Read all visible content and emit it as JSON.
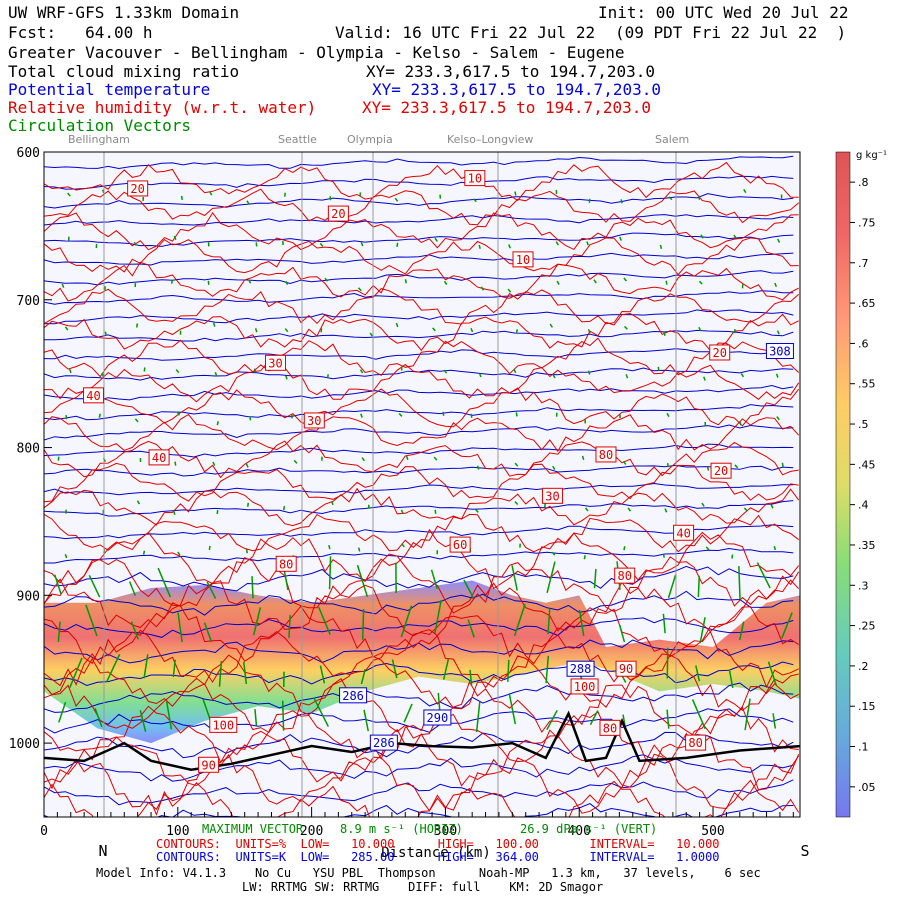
{
  "header": {
    "line1_left": "UW WRF-GFS 1.33km Domain",
    "line1_right": "Init: 00 UTC Wed 20 Jul 22",
    "line2_left": "Fcst:   64.00 h",
    "line2_mid": "Valid: 16 UTC Fri 22 Jul 22",
    "line2_right": "(09 PDT Fri 22 Jul 22  )",
    "line3": "Greater Vacouver - Bellingham - Olympia - Kelso - Salem - Eugene",
    "field1": "Total cloud mixing ratio",
    "field1_xy": "XY= 233.3,617.5 to 194.7,203.0",
    "field2": "Potential temperature",
    "field2_xy": "XY= 233.3,617.5 to 194.7,203.0",
    "field3": "Relative humidity (w.r.t. water)",
    "field3_xy": "XY= 233.3,617.5 to 194.7,203.0",
    "field4": "Circulation Vectors"
  },
  "cities": [
    "Bellingham",
    "Seattle",
    "Olympia",
    "Kelso–Longview",
    "Salem"
  ],
  "colors": {
    "rh": "#dd0000",
    "theta": "#0000cc",
    "vectors": "#009900",
    "terrain": "#000000"
  },
  "chart_data": {
    "type": "heatmap",
    "x_ticks": [
      "0",
      "100",
      "200",
      "300",
      "400",
      "500"
    ],
    "y_ticks": [
      "600",
      "700",
      "800",
      "900",
      "1000"
    ],
    "xlim": [
      0,
      565
    ],
    "ylim": [
      1050,
      600
    ],
    "x_end_labels": {
      "left": "N",
      "right": "S"
    },
    "xlabel": "Distance (km)",
    "colorbar": {
      "unit": "g kg⁻¹",
      "ticks": [
        ".05",
        ".1",
        ".15",
        ".2",
        ".25",
        ".3",
        ".35",
        ".4",
        ".45",
        ".5",
        ".55",
        ".6",
        ".65",
        ".7",
        ".75",
        ".8"
      ]
    },
    "rh_labels": [
      {
        "t": "20",
        "x": 70,
        "p": 625
      },
      {
        "t": "20",
        "x": 220,
        "p": 642
      },
      {
        "t": "10",
        "x": 322,
        "p": 618
      },
      {
        "t": "10",
        "x": 358,
        "p": 673
      },
      {
        "t": "30",
        "x": 173,
        "p": 743
      },
      {
        "t": "40",
        "x": 37,
        "p": 765
      },
      {
        "t": "30",
        "x": 202,
        "p": 782
      },
      {
        "t": "40",
        "x": 86,
        "p": 807
      },
      {
        "t": "20",
        "x": 505,
        "p": 736
      },
      {
        "t": "80",
        "x": 420,
        "p": 805
      },
      {
        "t": "20",
        "x": 506,
        "p": 816
      },
      {
        "t": "30",
        "x": 380,
        "p": 833
      },
      {
        "t": "40",
        "x": 478,
        "p": 858
      },
      {
        "t": "60",
        "x": 311,
        "p": 866
      },
      {
        "t": "80",
        "x": 181,
        "p": 879
      },
      {
        "t": "80",
        "x": 434,
        "p": 887
      },
      {
        "t": "90",
        "x": 435,
        "p": 950
      },
      {
        "t": "100",
        "x": 134,
        "p": 988
      },
      {
        "t": "90",
        "x": 123,
        "p": 1015
      },
      {
        "t": "80",
        "x": 423,
        "p": 990
      },
      {
        "t": "80",
        "x": 487,
        "p": 1000
      },
      {
        "t": "100",
        "x": 404,
        "p": 962
      }
    ],
    "theta_labels": [
      {
        "t": "308",
        "x": 550,
        "p": 735
      },
      {
        "t": "286",
        "x": 231,
        "p": 968
      },
      {
        "t": "288",
        "x": 401,
        "p": 950
      },
      {
        "t": "290",
        "x": 294,
        "p": 983
      },
      {
        "t": "286",
        "x": 254,
        "p": 1000
      }
    ],
    "cloud_band": [
      {
        "x": 0,
        "top": 905,
        "bot": 965
      },
      {
        "x": 40,
        "top": 905,
        "bot": 990
      },
      {
        "x": 80,
        "top": 895,
        "bot": 1000
      },
      {
        "x": 120,
        "top": 893,
        "bot": 985
      },
      {
        "x": 160,
        "top": 900,
        "bot": 975
      },
      {
        "x": 200,
        "top": 905,
        "bot": 980
      },
      {
        "x": 240,
        "top": 900,
        "bot": 965
      },
      {
        "x": 280,
        "top": 895,
        "bot": 955
      },
      {
        "x": 320,
        "top": 890,
        "bot": 960
      },
      {
        "x": 350,
        "top": 900,
        "bot": 955
      },
      {
        "x": 375,
        "top": 905,
        "bot": 950
      },
      {
        "x": 400,
        "top": 900,
        "bot": 945
      },
      {
        "x": 420,
        "top": 935,
        "bot": 950
      },
      {
        "x": 460,
        "top": 930,
        "bot": 965
      },
      {
        "x": 500,
        "top": 935,
        "bot": 960
      },
      {
        "x": 540,
        "top": 905,
        "bot": 965
      },
      {
        "x": 565,
        "top": 900,
        "bot": 970
      }
    ],
    "terrain": [
      {
        "x": 0,
        "p": 1010
      },
      {
        "x": 30,
        "p": 1012
      },
      {
        "x": 60,
        "p": 1000
      },
      {
        "x": 80,
        "p": 1012
      },
      {
        "x": 110,
        "p": 1018
      },
      {
        "x": 140,
        "p": 1014
      },
      {
        "x": 170,
        "p": 1008
      },
      {
        "x": 200,
        "p": 1002
      },
      {
        "x": 230,
        "p": 1006
      },
      {
        "x": 260,
        "p": 1000
      },
      {
        "x": 290,
        "p": 1002
      },
      {
        "x": 320,
        "p": 1003
      },
      {
        "x": 350,
        "p": 1000
      },
      {
        "x": 375,
        "p": 1010
      },
      {
        "x": 392,
        "p": 980
      },
      {
        "x": 405,
        "p": 1012
      },
      {
        "x": 420,
        "p": 1010
      },
      {
        "x": 432,
        "p": 985
      },
      {
        "x": 445,
        "p": 1012
      },
      {
        "x": 480,
        "p": 1010
      },
      {
        "x": 520,
        "p": 1005
      },
      {
        "x": 565,
        "p": 1002
      }
    ]
  },
  "footer": {
    "vector_title": "MAXIMUM VECTOR",
    "vector_h": "8.9 m s⁻¹ (HORIZ)",
    "vector_v": "26.9 dPa s⁻¹ (VERT)",
    "rh_line": "CONTOURS:  UNITS=%  LOW=   10.000      HIGH=   100.00       INTERVAL=   10.000",
    "theta_line": "CONTOURS:  UNITS=K  LOW=   285.00      HIGH=   364.00       INTERVAL=   1.0000",
    "model_info": "Model Info: V4.1.3    No Cu   YSU PBL  Thompson      Noah-MP   1.3 km,   37 levels,    6 sec",
    "model_info2": "LW: RRTMG SW: RRTMG    DIFF: full    KM: 2D Smagor"
  }
}
